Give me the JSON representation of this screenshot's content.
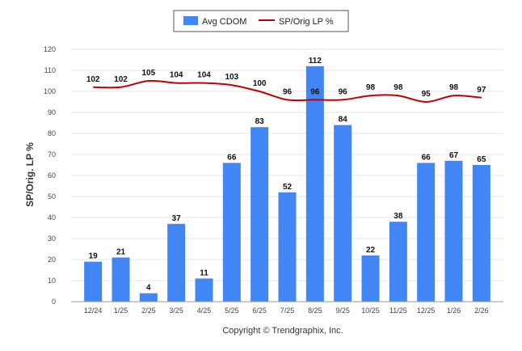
{
  "chart_data": {
    "type": "bar",
    "categories": [
      "12/24",
      "1/25",
      "2/25",
      "3/25",
      "4/25",
      "5/25",
      "6/25",
      "7/25",
      "8/25",
      "9/25",
      "10/25",
      "11/25",
      "12/25",
      "1/26",
      "2/26"
    ],
    "series": [
      {
        "name": "Avg CDOM",
        "type": "bar",
        "color": "#4285f4",
        "values": [
          19,
          21,
          4,
          37,
          11,
          66,
          83,
          52,
          112,
          84,
          22,
          38,
          66,
          67,
          65
        ]
      },
      {
        "name": "SP/Orig LP %",
        "type": "line",
        "color": "#c00000",
        "values": [
          102,
          102,
          105,
          104,
          104,
          103,
          100,
          96,
          96,
          96,
          98,
          98,
          95,
          98,
          97
        ]
      }
    ],
    "ylabel": "SP/Orig. LP %",
    "ylim": [
      0,
      120
    ],
    "yticks": [
      0,
      10,
      20,
      30,
      40,
      50,
      60,
      70,
      80,
      90,
      100,
      110,
      120
    ],
    "grid": true,
    "legend": "top-center"
  },
  "footer": {
    "copyright": "Copyright © Trendgraphix, Inc."
  }
}
